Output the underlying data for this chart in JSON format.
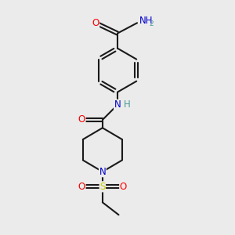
{
  "bg_color": "#ebebeb",
  "bond_color": "#1a1a1a",
  "O_color": "#ff0000",
  "N_color": "#0000cc",
  "S_color": "#cccc00",
  "H_color": "#4a9a9a",
  "font_size_atom": 8.5,
  "line_width": 1.5,
  "fig_size": [
    3.0,
    3.0
  ],
  "dpi": 100,
  "xlim": [
    0,
    10
  ],
  "ylim": [
    0,
    10
  ]
}
